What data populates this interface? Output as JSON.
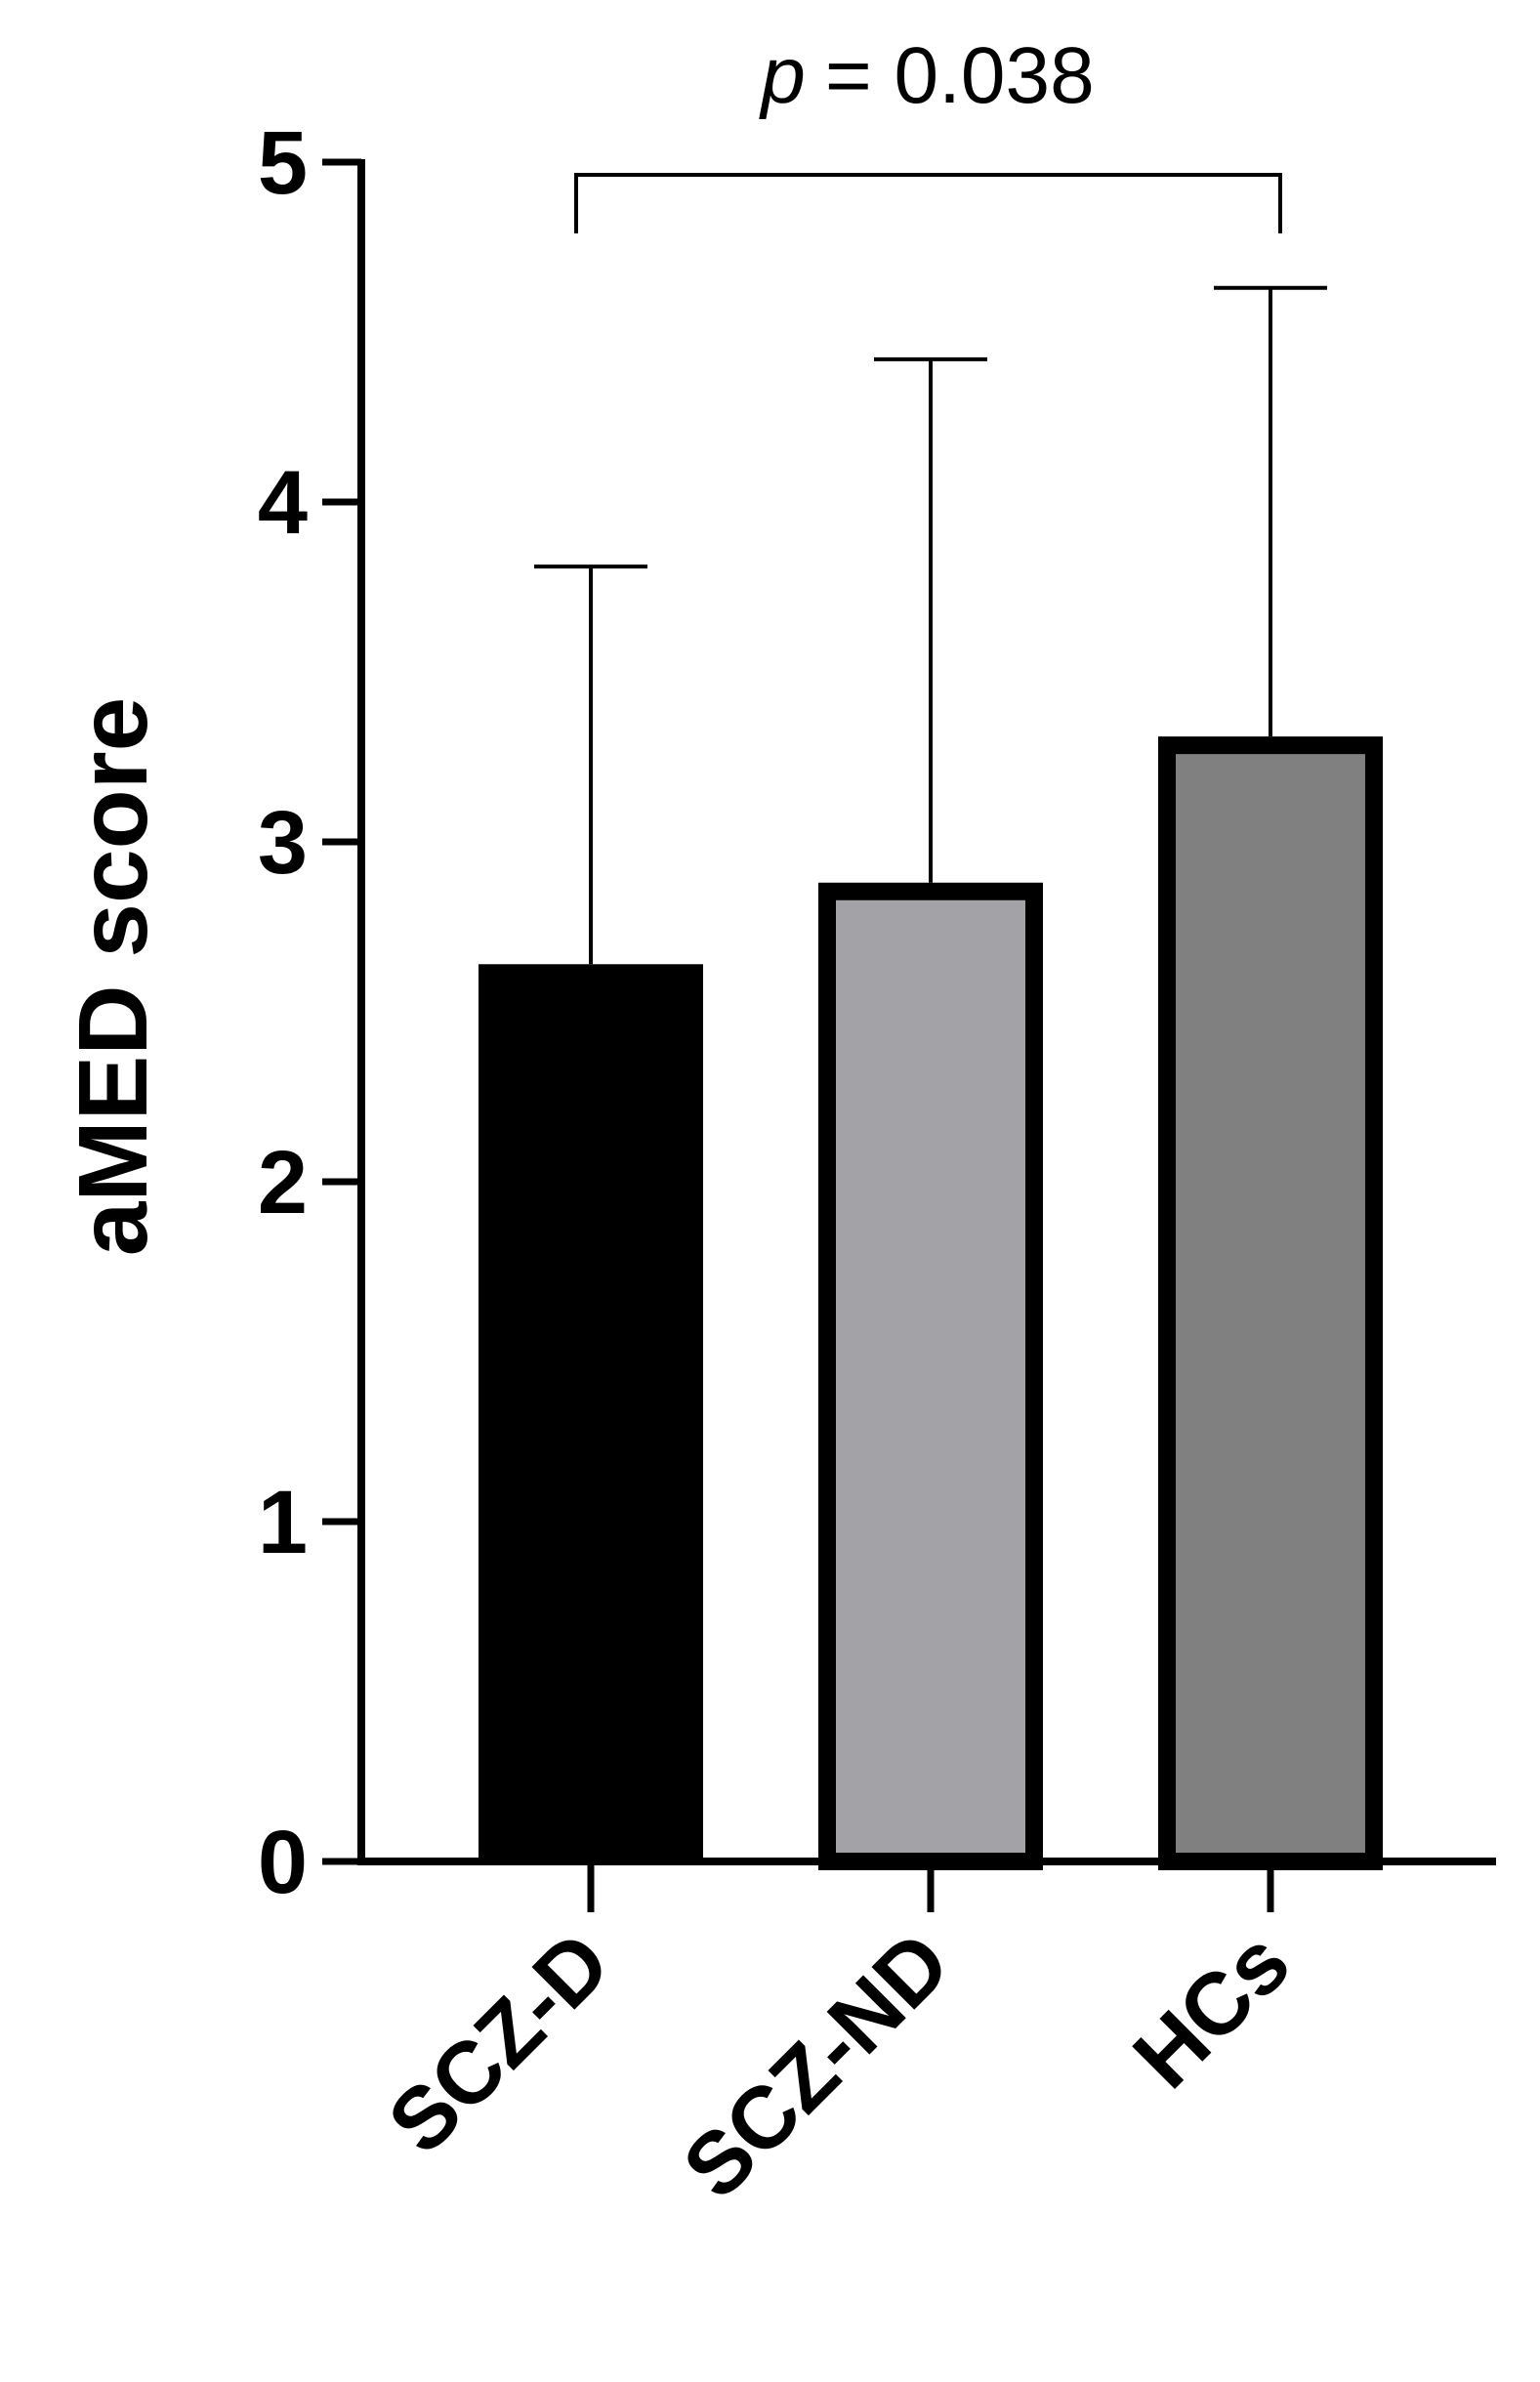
{
  "chart_data": {
    "type": "bar",
    "ylabel": "aMED score",
    "categories": [
      "SCZ-D",
      "SCZ-ND",
      "HCs"
    ],
    "values": [
      2.64,
      2.88,
      3.31
    ],
    "errors": [
      1.17,
      1.54,
      1.32
    ],
    "colors": [
      "#000000",
      "#a3a2a6",
      "#808080"
    ],
    "ylim": [
      0,
      5
    ],
    "yticks": [
      0,
      1,
      2,
      3,
      4,
      5
    ],
    "annotation": {
      "italic": "p",
      "text": "= 0.038"
    }
  }
}
